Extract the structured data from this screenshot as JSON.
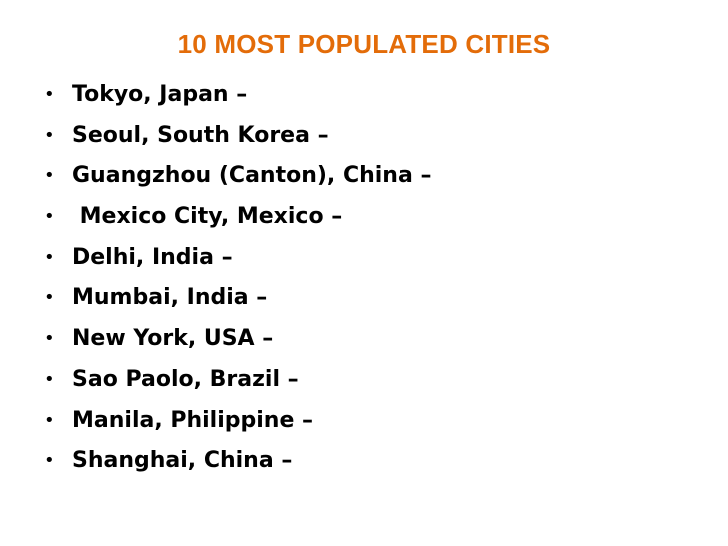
{
  "slide": {
    "title": "10 MOST POPULATED CITIES",
    "bullet_symbol": "•",
    "items": [
      "Tokyo, Japan –",
      "Seoul, South Korea –",
      "Guangzhou (Canton), China –",
      " Mexico City, Mexico –",
      "Delhi, India –",
      "Mumbai, India –",
      "New York, USA –",
      "Sao Paolo, Brazil –",
      "Manila, Philippine –",
      "Shanghai, China –"
    ]
  },
  "colors": {
    "title": "#E36C09",
    "text": "#000000",
    "background": "#FFFFFF"
  }
}
